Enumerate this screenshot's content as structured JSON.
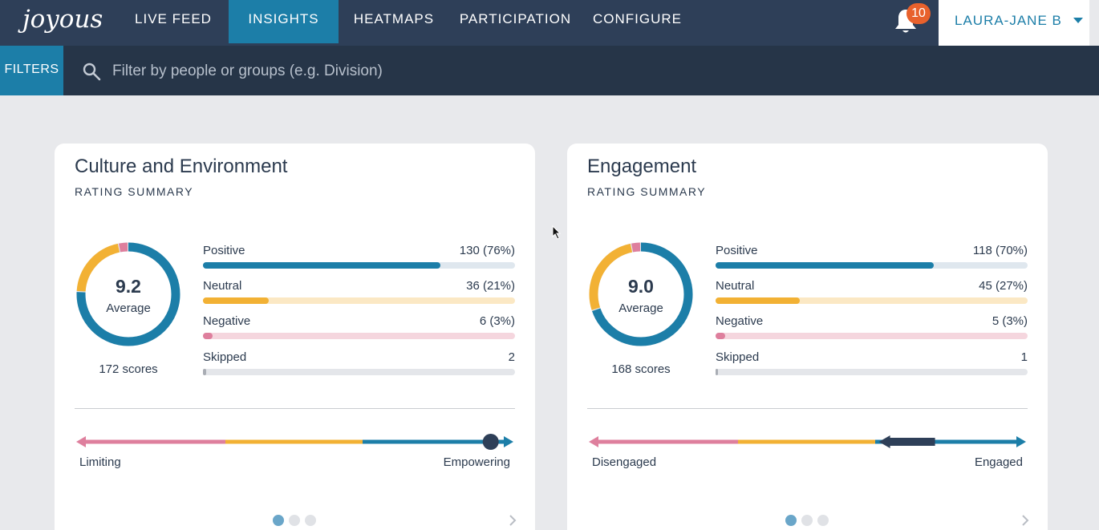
{
  "app": {
    "logo": "joyous"
  },
  "nav": {
    "items": [
      {
        "label": "LIVE FEED",
        "active": false
      },
      {
        "label": "INSIGHTS",
        "active": true
      },
      {
        "label": "HEATMAPS",
        "active": false
      },
      {
        "label": "PARTICIPATION",
        "active": false
      },
      {
        "label": "CONFIGURE",
        "active": false
      }
    ],
    "notifications": "10",
    "user": "LAURA-JANE B"
  },
  "filterbar": {
    "button": "FILTERS",
    "placeholder": "Filter by people or groups (e.g. Division)"
  },
  "colors": {
    "positive": "#1c7ea8",
    "neutral": "#f2b134",
    "negative": "#de7f9d",
    "skipped": "#a9adb4",
    "accent": "#1c7ea8",
    "nav_bg": "#2e3f58"
  },
  "cards": [
    {
      "title": "Culture and Environment",
      "subtitle": "RATING SUMMARY",
      "average": "9.2",
      "average_label": "Average",
      "scores": "172 scores",
      "rows": [
        {
          "label": "Positive",
          "value": "130 (76%)",
          "fraction": 0.76
        },
        {
          "label": "Neutral",
          "value": "36 (21%)",
          "fraction": 0.21
        },
        {
          "label": "Negative",
          "value": "6 (3%)",
          "fraction": 0.03
        },
        {
          "label": "Skipped",
          "value": "2",
          "fraction": 0.01
        }
      ],
      "scale": {
        "left": "Limiting",
        "right": "Empowering",
        "marker_fraction": 0.96
      },
      "pager": {
        "pages": 3,
        "current": 1
      }
    },
    {
      "title": "Engagement",
      "subtitle": "RATING SUMMARY",
      "average": "9.0",
      "average_label": "Average",
      "scores": "168 scores",
      "rows": [
        {
          "label": "Positive",
          "value": "118 (70%)",
          "fraction": 0.7
        },
        {
          "label": "Neutral",
          "value": "45 (27%)",
          "fraction": 0.27
        },
        {
          "label": "Negative",
          "value": "5 (3%)",
          "fraction": 0.03
        },
        {
          "label": "Skipped",
          "value": "1",
          "fraction": 0.005
        }
      ],
      "scale": {
        "left": "Disengaged",
        "right": "Engaged",
        "marker_fraction": 0.8
      },
      "pager": {
        "pages": 3,
        "current": 1
      }
    }
  ]
}
